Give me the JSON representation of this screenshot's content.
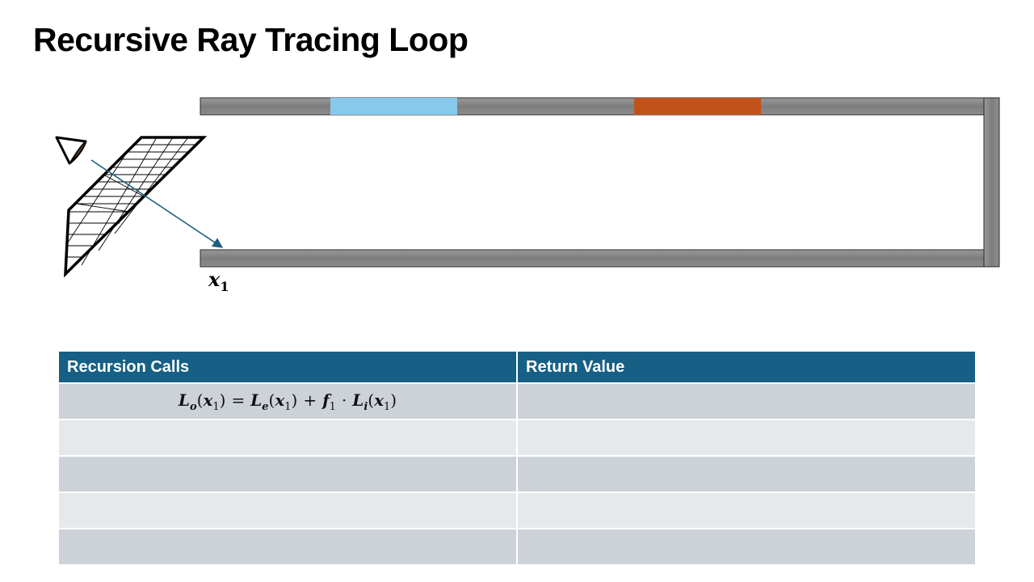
{
  "slide": {
    "title": "Recursive Ray Tracing Loop"
  },
  "diagram": {
    "hit_point_label": {
      "var": "x",
      "sub": "1"
    },
    "colors": {
      "wall": "#808080",
      "light_blue_patch": "#86c9ea",
      "orange_patch": "#c0521a",
      "ray": "#1f5f80"
    },
    "icons": [
      "eye-icon"
    ]
  },
  "table": {
    "headers": [
      "Recursion Calls",
      "Return Value"
    ],
    "rows": [
      {
        "call": {
          "lhs_L": "L",
          "lhs_sub": "o",
          "x": "x",
          "x_sub": "1",
          "eq": "=",
          "Le": "L",
          "Le_sub": "e",
          "plus": "+",
          "f": "f",
          "f_sub": "1",
          "dot": "·",
          "Li": "L",
          "Li_sub": "i",
          "lp": "(",
          "rp": ")"
        },
        "return_value": ""
      },
      {
        "call": null,
        "return_value": ""
      },
      {
        "call": null,
        "return_value": ""
      },
      {
        "call": null,
        "return_value": ""
      },
      {
        "call": null,
        "return_value": ""
      }
    ]
  }
}
